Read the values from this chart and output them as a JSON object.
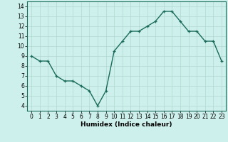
{
  "x": [
    0,
    1,
    2,
    3,
    4,
    5,
    6,
    7,
    8,
    9,
    10,
    11,
    12,
    13,
    14,
    15,
    16,
    17,
    18,
    19,
    20,
    21,
    22,
    23
  ],
  "y": [
    9.0,
    8.5,
    8.5,
    7.0,
    6.5,
    6.5,
    6.0,
    5.5,
    4.0,
    5.5,
    9.5,
    10.5,
    11.5,
    11.5,
    12.0,
    12.5,
    13.5,
    13.5,
    12.5,
    11.5,
    11.5,
    10.5,
    10.5,
    8.5
  ],
  "line_color": "#1a6b5a",
  "bg_color": "#cef0ec",
  "grid_color": "#b0d8d0",
  "xlabel": "Humidex (Indice chaleur)",
  "ylim": [
    3.5,
    14.5
  ],
  "xlim": [
    -0.5,
    23.5
  ],
  "yticks": [
    4,
    5,
    6,
    7,
    8,
    9,
    10,
    11,
    12,
    13,
    14
  ],
  "xticks": [
    0,
    1,
    2,
    3,
    4,
    5,
    6,
    7,
    8,
    9,
    10,
    11,
    12,
    13,
    14,
    15,
    16,
    17,
    18,
    19,
    20,
    21,
    22,
    23
  ],
  "xtick_labels": [
    "0",
    "1",
    "2",
    "3",
    "4",
    "5",
    "6",
    "7",
    "8",
    "9",
    "10",
    "11",
    "12",
    "13",
    "14",
    "15",
    "16",
    "17",
    "18",
    "19",
    "20",
    "21",
    "22",
    "23"
  ],
  "marker": "+",
  "marker_size": 3.5,
  "line_width": 1.0,
  "tick_fontsize": 5.5,
  "xlabel_fontsize": 6.5
}
